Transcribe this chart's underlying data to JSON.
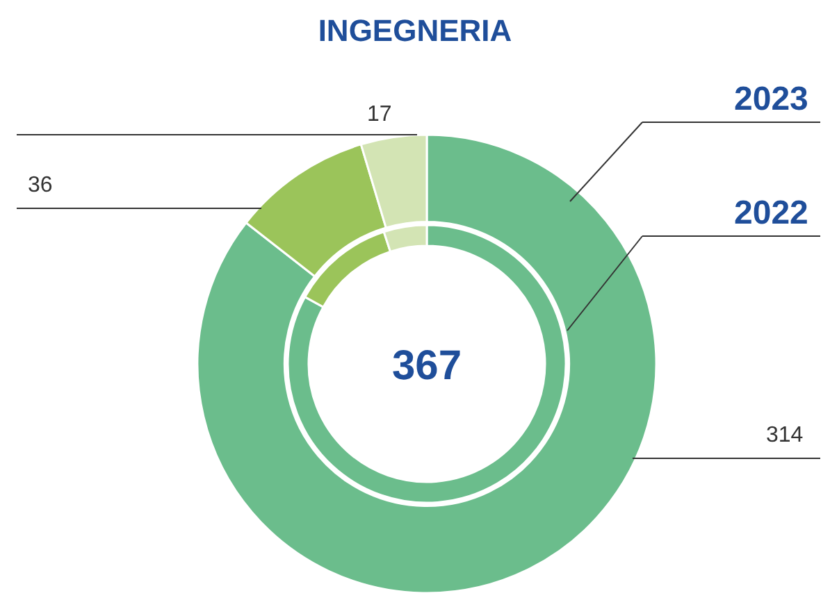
{
  "chart_data": [
    {
      "type": "donut",
      "title": "INGEGNERIA",
      "annotations": [
        "367"
      ],
      "legend": false,
      "series": [
        {
          "name": "2023",
          "values": [
            314,
            36,
            17
          ],
          "colors": [
            "#6bbd8c",
            "#9bc45a",
            "#d3e4b4"
          ],
          "value_labels": [
            "314",
            "36",
            "17"
          ]
        }
      ]
    },
    {
      "type": "donut",
      "legend": false,
      "series": [
        {
          "name": "2022",
          "values": [
            83,
            12,
            5
          ],
          "colors": [
            "#6bbd8c",
            "#9bc45a",
            "#d3e4b4"
          ]
        }
      ]
    }
  ]
}
